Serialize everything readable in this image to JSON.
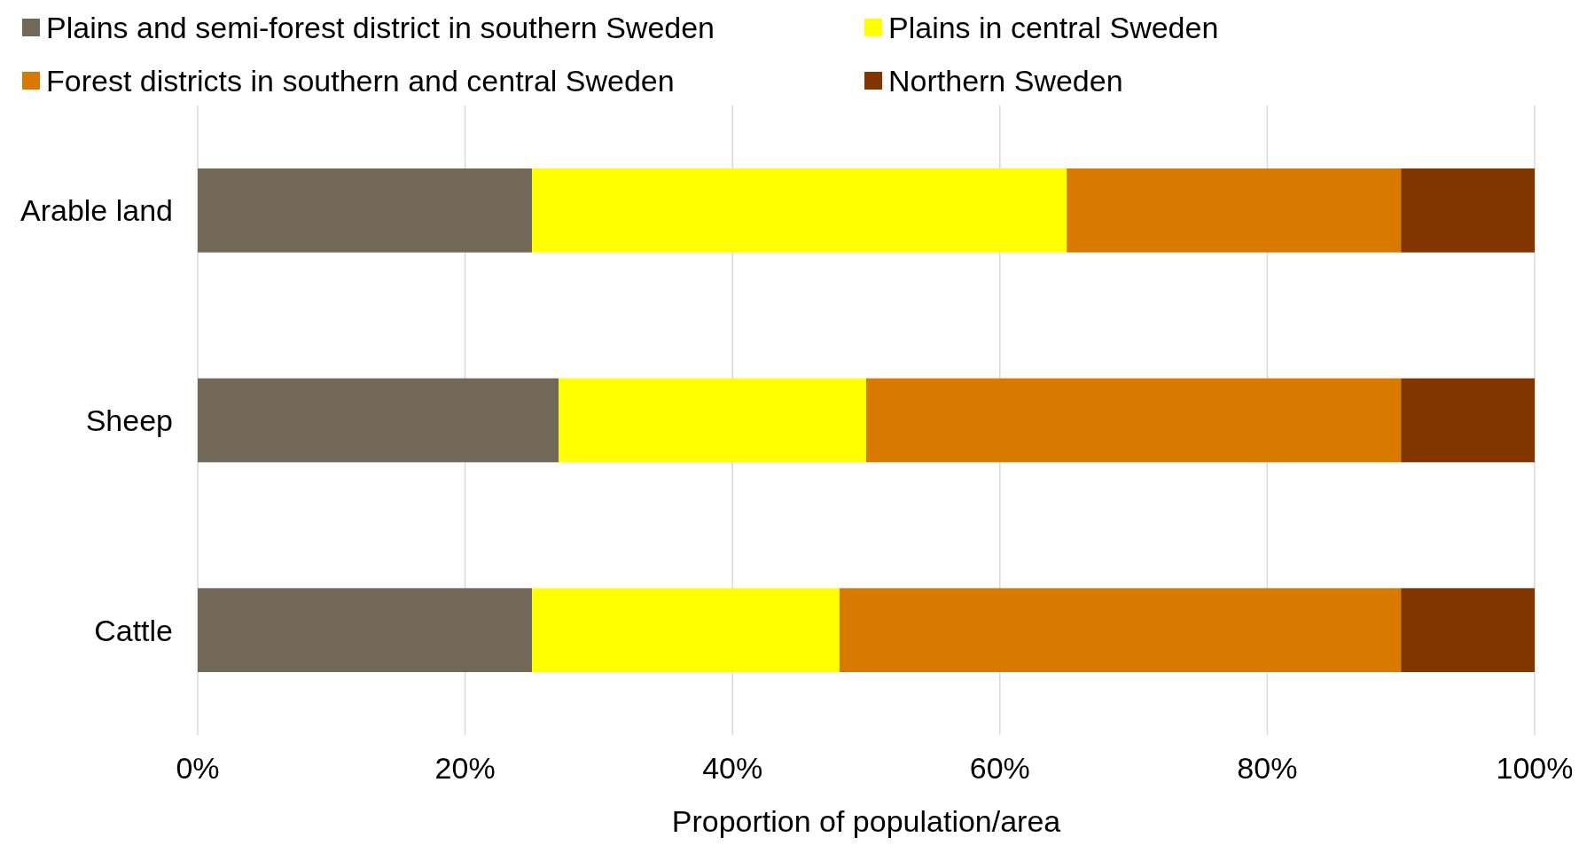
{
  "chart_data": {
    "type": "bar",
    "orientation": "horizontal",
    "stacked": true,
    "categories": [
      "Arable land",
      "Sheep",
      "Cattle"
    ],
    "series": [
      {
        "name": "Plains and semi-forest district in southern Sweden",
        "color": "#726858",
        "values": [
          25,
          27,
          25
        ]
      },
      {
        "name": "Plains in central Sweden",
        "color": "#ffff00",
        "values": [
          40,
          23,
          23
        ]
      },
      {
        "name": "Forest districts in southern and central Sweden",
        "color": "#d97a00",
        "values": [
          25,
          40,
          42
        ]
      },
      {
        "name": "Northern Sweden",
        "color": "#833500",
        "values": [
          10,
          10,
          10
        ]
      }
    ],
    "xlim": [
      0,
      100
    ],
    "xticks": [
      {
        "value": 0,
        "label": "0%"
      },
      {
        "value": 20,
        "label": "20%"
      },
      {
        "value": 40,
        "label": "40%"
      },
      {
        "value": 60,
        "label": "60%"
      },
      {
        "value": 80,
        "label": "80%"
      },
      {
        "value": 100,
        "label": "100%"
      }
    ],
    "xlabel": "Proportion of population/area",
    "grid": "x",
    "legend": "top"
  }
}
